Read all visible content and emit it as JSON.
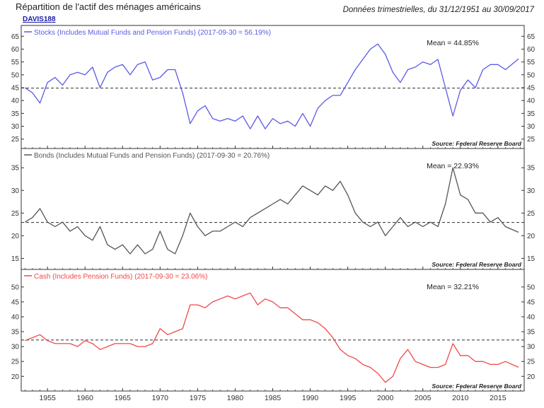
{
  "header": {
    "title": "Répartition de l'actif des ménages américains",
    "subtitle": "Données trimestrielles, du 31/12/1951 au 30/09/2017",
    "code": "DAVIS188"
  },
  "chart_data": [
    {
      "type": "line",
      "series": [
        {
          "name": "Stocks (Includes Mutual Funds and Pension Funds) (2017-09-30 = 56.19%)",
          "color": "#5a5ae6",
          "x": [
            1952,
            1953,
            1954,
            1955,
            1956,
            1957,
            1958,
            1959,
            1960,
            1961,
            1962,
            1963,
            1964,
            1965,
            1966,
            1967,
            1968,
            1969,
            1970,
            1971,
            1972,
            1973,
            1974,
            1975,
            1976,
            1977,
            1978,
            1979,
            1980,
            1981,
            1982,
            1983,
            1984,
            1985,
            1986,
            1987,
            1988,
            1989,
            1990,
            1991,
            1992,
            1993,
            1994,
            1995,
            1996,
            1997,
            1998,
            1999,
            2000,
            2001,
            2002,
            2003,
            2004,
            2005,
            2006,
            2007,
            2008,
            2009,
            2010,
            2011,
            2012,
            2013,
            2014,
            2015,
            2016,
            2017.75
          ],
          "y": [
            45,
            43,
            39,
            47,
            49,
            46,
            50,
            51,
            50,
            53,
            45,
            51,
            53,
            54,
            50,
            54,
            55,
            48,
            49,
            52,
            52,
            43,
            31,
            36,
            38,
            33,
            32,
            33,
            32,
            34,
            29,
            34,
            29,
            33,
            31,
            32,
            30,
            35,
            30,
            37,
            40,
            42,
            42,
            47,
            52,
            56,
            60,
            62,
            58,
            51,
            47,
            52,
            53,
            55,
            54,
            56,
            45,
            34,
            44,
            48,
            45,
            52,
            54,
            54,
            52,
            56.19
          ]
        }
      ],
      "mean_label": "Mean = 44.85%",
      "mean": 44.85,
      "source": "Source:  Federal Reserve Board",
      "ylim": [
        23,
        67
      ],
      "yticks": [
        25,
        30,
        35,
        40,
        45,
        50,
        55,
        60,
        65
      ],
      "ytick_labels": [
        "25",
        "30",
        "35",
        "40",
        "45",
        "50",
        "55",
        "60",
        "65"
      ]
    },
    {
      "type": "line",
      "series": [
        {
          "name": "Bonds (Includes Mutual Funds and Pension Funds) (2017-09-30 = 20.76%)",
          "color": "#555555",
          "x": [
            1952,
            1953,
            1954,
            1955,
            1956,
            1957,
            1958,
            1959,
            1960,
            1961,
            1962,
            1963,
            1964,
            1965,
            1966,
            1967,
            1968,
            1969,
            1970,
            1971,
            1972,
            1973,
            1974,
            1975,
            1976,
            1977,
            1978,
            1979,
            1980,
            1981,
            1982,
            1983,
            1984,
            1985,
            1986,
            1987,
            1988,
            1989,
            1990,
            1991,
            1992,
            1993,
            1994,
            1995,
            1996,
            1997,
            1998,
            1999,
            2000,
            2001,
            2002,
            2003,
            2004,
            2005,
            2006,
            2007,
            2008,
            2009,
            2010,
            2011,
            2012,
            2013,
            2014,
            2015,
            2016,
            2017.75
          ],
          "y": [
            23,
            24,
            26,
            23,
            22,
            23,
            21,
            22,
            20,
            19,
            22,
            18,
            17,
            18,
            16,
            18,
            16,
            17,
            21,
            17,
            16,
            20,
            25,
            22,
            20,
            21,
            21,
            22,
            23,
            22,
            24,
            25,
            26,
            27,
            28,
            27,
            29,
            31,
            30,
            29,
            31,
            30,
            32,
            29,
            25,
            23,
            22,
            23,
            20,
            22,
            24,
            22,
            23,
            22,
            23,
            22,
            27,
            35,
            29,
            28,
            25,
            25,
            23,
            24,
            22,
            20.76
          ]
        }
      ],
      "mean_label": "Mean = 22.93%",
      "mean": 22.93,
      "source": "Source:  Federal Reserve Board",
      "ylim": [
        13.5,
        38
      ],
      "yticks": [
        15,
        20,
        25,
        30,
        35
      ],
      "ytick_labels": [
        "15",
        "20",
        "25",
        "30",
        "35"
      ]
    },
    {
      "type": "line",
      "series": [
        {
          "name": "Cash (Includes Pension Funds) (2017-09-30 = 23.06%)",
          "color": "#f04848",
          "x": [
            1952,
            1953,
            1954,
            1955,
            1956,
            1957,
            1958,
            1959,
            1960,
            1961,
            1962,
            1963,
            1964,
            1965,
            1966,
            1967,
            1968,
            1969,
            1970,
            1971,
            1972,
            1973,
            1974,
            1975,
            1976,
            1977,
            1978,
            1979,
            1980,
            1981,
            1982,
            1983,
            1984,
            1985,
            1986,
            1987,
            1988,
            1989,
            1990,
            1991,
            1992,
            1993,
            1994,
            1995,
            1996,
            1997,
            1998,
            1999,
            2000,
            2001,
            2002,
            2003,
            2004,
            2005,
            2006,
            2007,
            2008,
            2009,
            2010,
            2011,
            2012,
            2013,
            2014,
            2015,
            2016,
            2017.75
          ],
          "y": [
            32,
            33,
            34,
            32,
            31,
            31,
            31,
            30,
            32,
            31,
            29,
            30,
            31,
            31,
            31,
            30,
            30,
            31,
            36,
            34,
            35,
            36,
            44,
            44,
            43,
            45,
            46,
            47,
            46,
            47,
            48,
            44,
            46,
            45,
            43,
            43,
            41,
            39,
            39,
            38,
            36,
            33,
            29,
            27,
            26,
            24,
            23,
            21,
            18,
            20,
            26,
            29,
            25,
            24,
            23,
            23,
            24,
            31,
            27,
            27,
            25,
            25,
            24,
            24,
            25,
            23.06
          ]
        }
      ],
      "mean_label": "Mean = 32.21%",
      "mean": 32.21,
      "source": "Source:  Federal Reserve Board",
      "ylim": [
        16.5,
        54
      ],
      "yticks": [
        20,
        25,
        30,
        35,
        40,
        45,
        50
      ],
      "ytick_labels": [
        "20",
        "25",
        "30",
        "35",
        "40",
        "45",
        "50"
      ]
    }
  ],
  "x_axis": {
    "xlim": [
      1951.5,
      2018.5
    ],
    "ticks": [
      1955,
      1960,
      1965,
      1970,
      1975,
      1980,
      1985,
      1990,
      1995,
      2000,
      2005,
      2010,
      2015
    ],
    "tick_labels": [
      "1955",
      "1960",
      "1965",
      "1970",
      "1975",
      "1980",
      "1985",
      "1990",
      "1995",
      "2000",
      "2005",
      "2010",
      "2015"
    ]
  }
}
